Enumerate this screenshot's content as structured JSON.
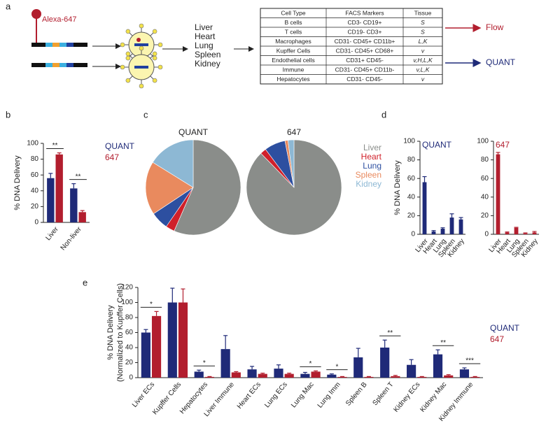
{
  "panel_a": {
    "label": "a",
    "probe": "Alexa-647",
    "organs": [
      "Liver",
      "Heart",
      "Lung",
      "Spleen",
      "Kidney"
    ],
    "table": {
      "header": [
        "Cell Type",
        "FACS Markers",
        "Tissue"
      ],
      "rows": [
        [
          "B cells",
          "CD3- CD19+",
          "S"
        ],
        [
          "T cells",
          "CD19- CD3+",
          "S"
        ],
        [
          "Macrophages",
          "CD31- CD45+ CD11b+",
          "L,K"
        ],
        [
          "Kupffer Cells",
          "CD31- CD45+ CD68+",
          "v"
        ],
        [
          "Endothelial cells",
          "CD31+ CD45-",
          "v,H,L,K"
        ],
        [
          "Immune",
          "CD31- CD45+ CD11b-",
          "v,L,K"
        ],
        [
          "Hepatocytes",
          "CD31- CD45-",
          "v"
        ]
      ]
    },
    "outputs": [
      "Flow",
      "QUANT"
    ]
  },
  "panel_labels": [
    "b",
    "c",
    "d",
    "e"
  ],
  "chart_data": [
    {
      "type": "bar",
      "ylabel": "% DNA Delivery",
      "categories": [
        "Liver",
        "Non-liver"
      ],
      "series": [
        {
          "name": "QUANT",
          "color": "#1f2a78",
          "values": [
            56,
            43
          ],
          "errors": [
            6,
            6
          ]
        },
        {
          "name": "647",
          "color": "#b21e2e",
          "values": [
            86,
            13
          ],
          "errors": [
            2,
            2
          ]
        }
      ],
      "significance": [
        "**",
        "**"
      ],
      "ylim": [
        0,
        100
      ],
      "yticks": [
        0,
        20,
        40,
        60,
        80,
        100
      ]
    },
    {
      "type": "pie",
      "categories": [
        "Liver",
        "Heart",
        "Lung",
        "Spleen",
        "Kidney"
      ],
      "colors": [
        "#8a8d8a",
        "#d0202a",
        "#2d4fa0",
        "#e98a5e",
        "#8db8d4"
      ],
      "series": [
        {
          "name": "QUANT",
          "values": [
            56,
            3,
            6,
            18,
            16
          ]
        },
        {
          "name": "647",
          "values": [
            86,
            2,
            7,
            1,
            2
          ]
        }
      ]
    },
    {
      "type": "bar",
      "title": "QUANT",
      "ylabel": "% DNA Delivery",
      "color": "#1f2a78",
      "categories": [
        "Liver",
        "Heart",
        "Lung",
        "Spleen",
        "Kidney"
      ],
      "values": [
        56,
        3,
        6,
        18,
        16
      ],
      "errors": [
        6,
        1,
        1,
        4,
        2
      ],
      "ylim": [
        0,
        100
      ],
      "yticks": [
        0,
        20,
        40,
        60,
        80,
        100
      ]
    },
    {
      "type": "bar",
      "title": "647",
      "color": "#b21e2e",
      "categories": [
        "Liver",
        "Heart",
        "Lung",
        "Spleen",
        "Kidney"
      ],
      "values": [
        86,
        2,
        7,
        1,
        2
      ],
      "errors": [
        2,
        0.5,
        0.5,
        0.5,
        1
      ],
      "ylim": [
        0,
        100
      ],
      "yticks": [
        0,
        20,
        40,
        60,
        80,
        100
      ]
    },
    {
      "type": "bar",
      "ylabel": [
        "% DNA Delivery",
        "(Normalized to Kupffer Cells)"
      ],
      "categories": [
        "Liver ECs",
        "Kupffer Cells",
        "Hepatocytes",
        "Liver Immune",
        "Heart ECs",
        "Lung ECs",
        "Lung Mac",
        "Lung Imm",
        "Spleen B",
        "Spleen T",
        "Kidney ECs",
        "Kidney Mac",
        "Kidney Immune"
      ],
      "series": [
        {
          "name": "QUANT",
          "color": "#1f2a78",
          "values": [
            60,
            100,
            8,
            38,
            11,
            12,
            5,
            4,
            27,
            40,
            17,
            31,
            11
          ],
          "errors": [
            4,
            19,
            2,
            18,
            4,
            5,
            2,
            1,
            12,
            10,
            7,
            6,
            2
          ]
        },
        {
          "name": "647",
          "color": "#b21e2e",
          "values": [
            82,
            100,
            1,
            7,
            5,
            5,
            8,
            1,
            1,
            2,
            1,
            3,
            1
          ],
          "errors": [
            6,
            18,
            0.5,
            1,
            1,
            1,
            1,
            0.5,
            0.5,
            1,
            0.5,
            1,
            0.5
          ]
        }
      ],
      "significance": [
        "*",
        null,
        "*",
        null,
        null,
        null,
        "*",
        "*",
        null,
        "**",
        null,
        "**",
        "***"
      ],
      "ylim": [
        0,
        120
      ],
      "yticks": [
        0,
        20,
        40,
        60,
        80,
        100,
        120
      ]
    }
  ]
}
